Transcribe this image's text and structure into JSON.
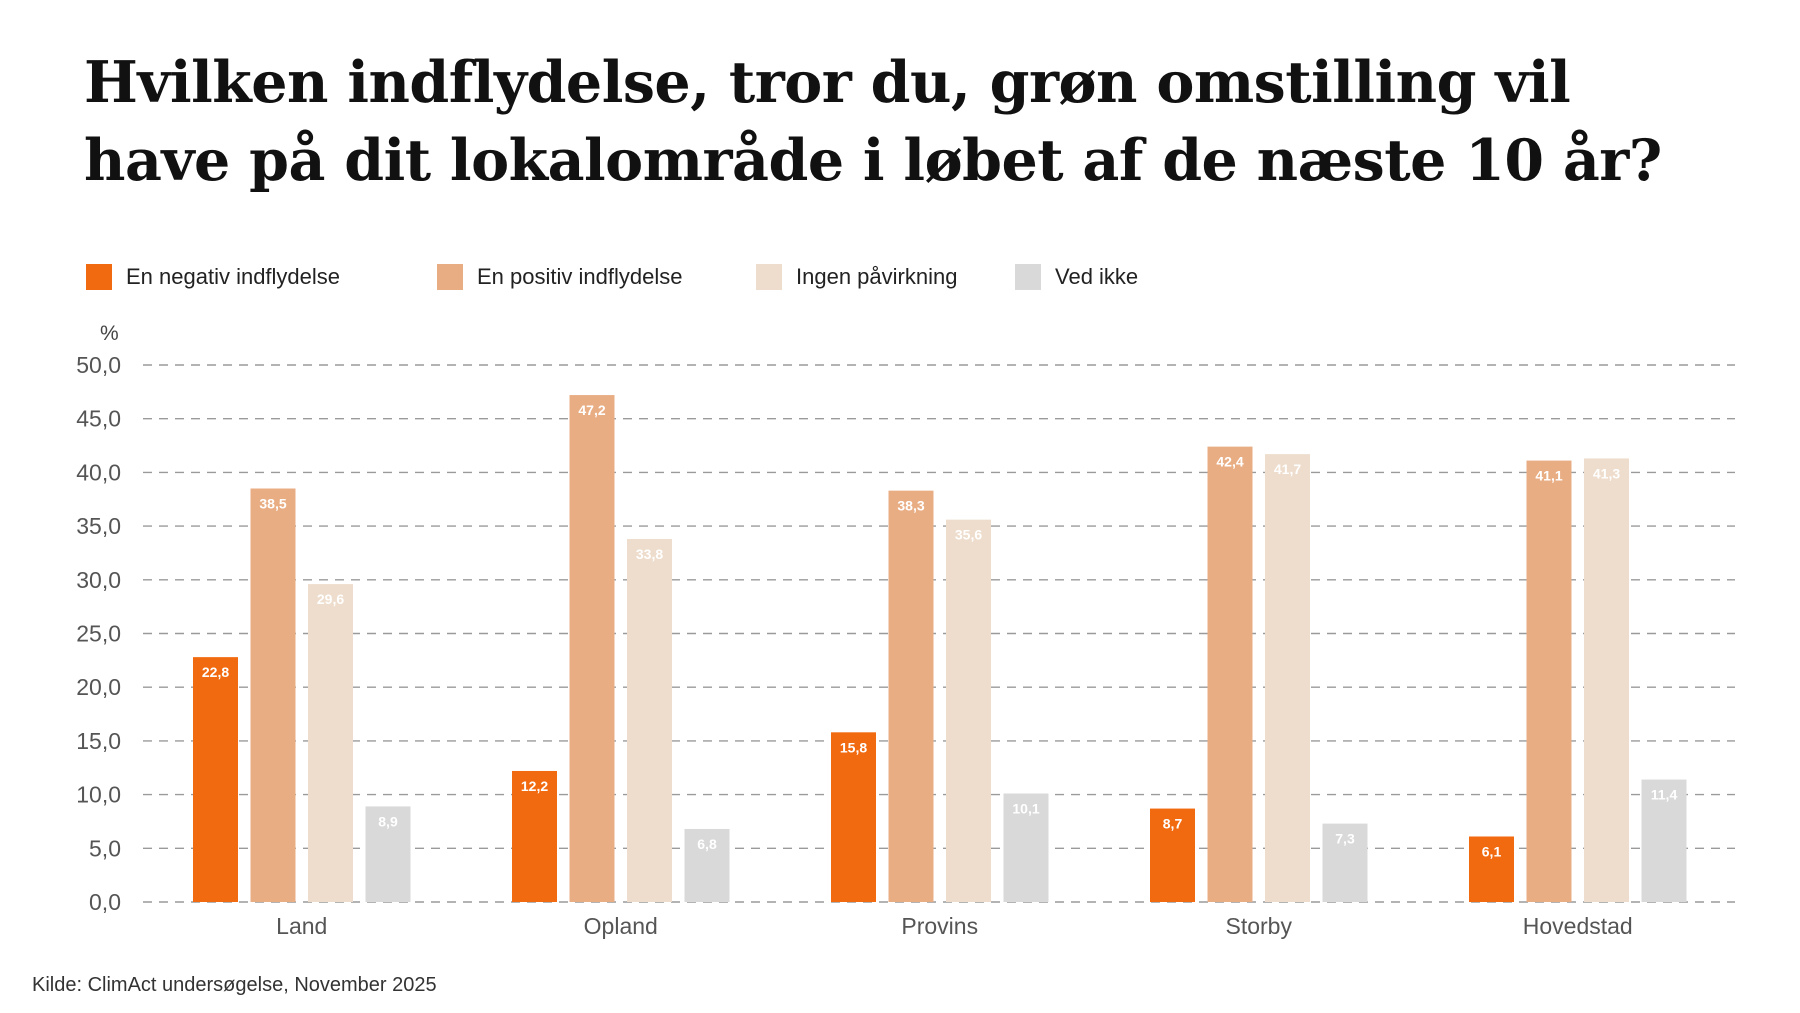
{
  "title": "Hvilken indflydelse, tror du, grøn omstilling vil have på dit lokalområde i løbet af de næste 10 år?",
  "source": "Kilde: ClimAct undersøgelse, November 2025",
  "chart_data": {
    "type": "bar",
    "title": "Hvilken indflydelse, tror du, grøn omstilling vil have på dit lokalområde i løbet af de næste 10 år?",
    "ylabel": "%",
    "ylim": [
      0,
      50
    ],
    "yticks": [
      "0,0",
      "5,0",
      "10,0",
      "15,0",
      "20,0",
      "25,0",
      "30,0",
      "35,0",
      "40,0",
      "45,0",
      "50,0"
    ],
    "grid": true,
    "legend_position": "top-left",
    "categories": [
      "Land",
      "Opland",
      "Provins",
      "Storby",
      "Hovedstad"
    ],
    "series": [
      {
        "name": "En negativ indflydelse",
        "color": "#F26A10",
        "values": [
          22.8,
          12.2,
          15.8,
          8.7,
          6.1
        ],
        "labels": [
          "22,8",
          "12,2",
          "15,8",
          "8,7",
          "6,1"
        ]
      },
      {
        "name": "En positiv indflydelse",
        "color": "#E9AD84",
        "values": [
          38.5,
          47.2,
          38.3,
          42.4,
          41.1
        ],
        "labels": [
          "38,5",
          "47,2",
          "38,3",
          "42,4",
          "41,1"
        ]
      },
      {
        "name": "Ingen påvirkning",
        "color": "#EEDDCC",
        "values": [
          29.6,
          33.8,
          35.6,
          41.7,
          41.3
        ],
        "labels": [
          "29,6",
          "33,8",
          "35,6",
          "41,7",
          "41,3"
        ]
      },
      {
        "name": "Ved ikke",
        "color": "#D9D9D9",
        "values": [
          8.9,
          6.8,
          10.1,
          7.3,
          11.4
        ],
        "labels": [
          "8,9",
          "6,8",
          "10,1",
          "7,3",
          "11,4"
        ]
      }
    ]
  }
}
